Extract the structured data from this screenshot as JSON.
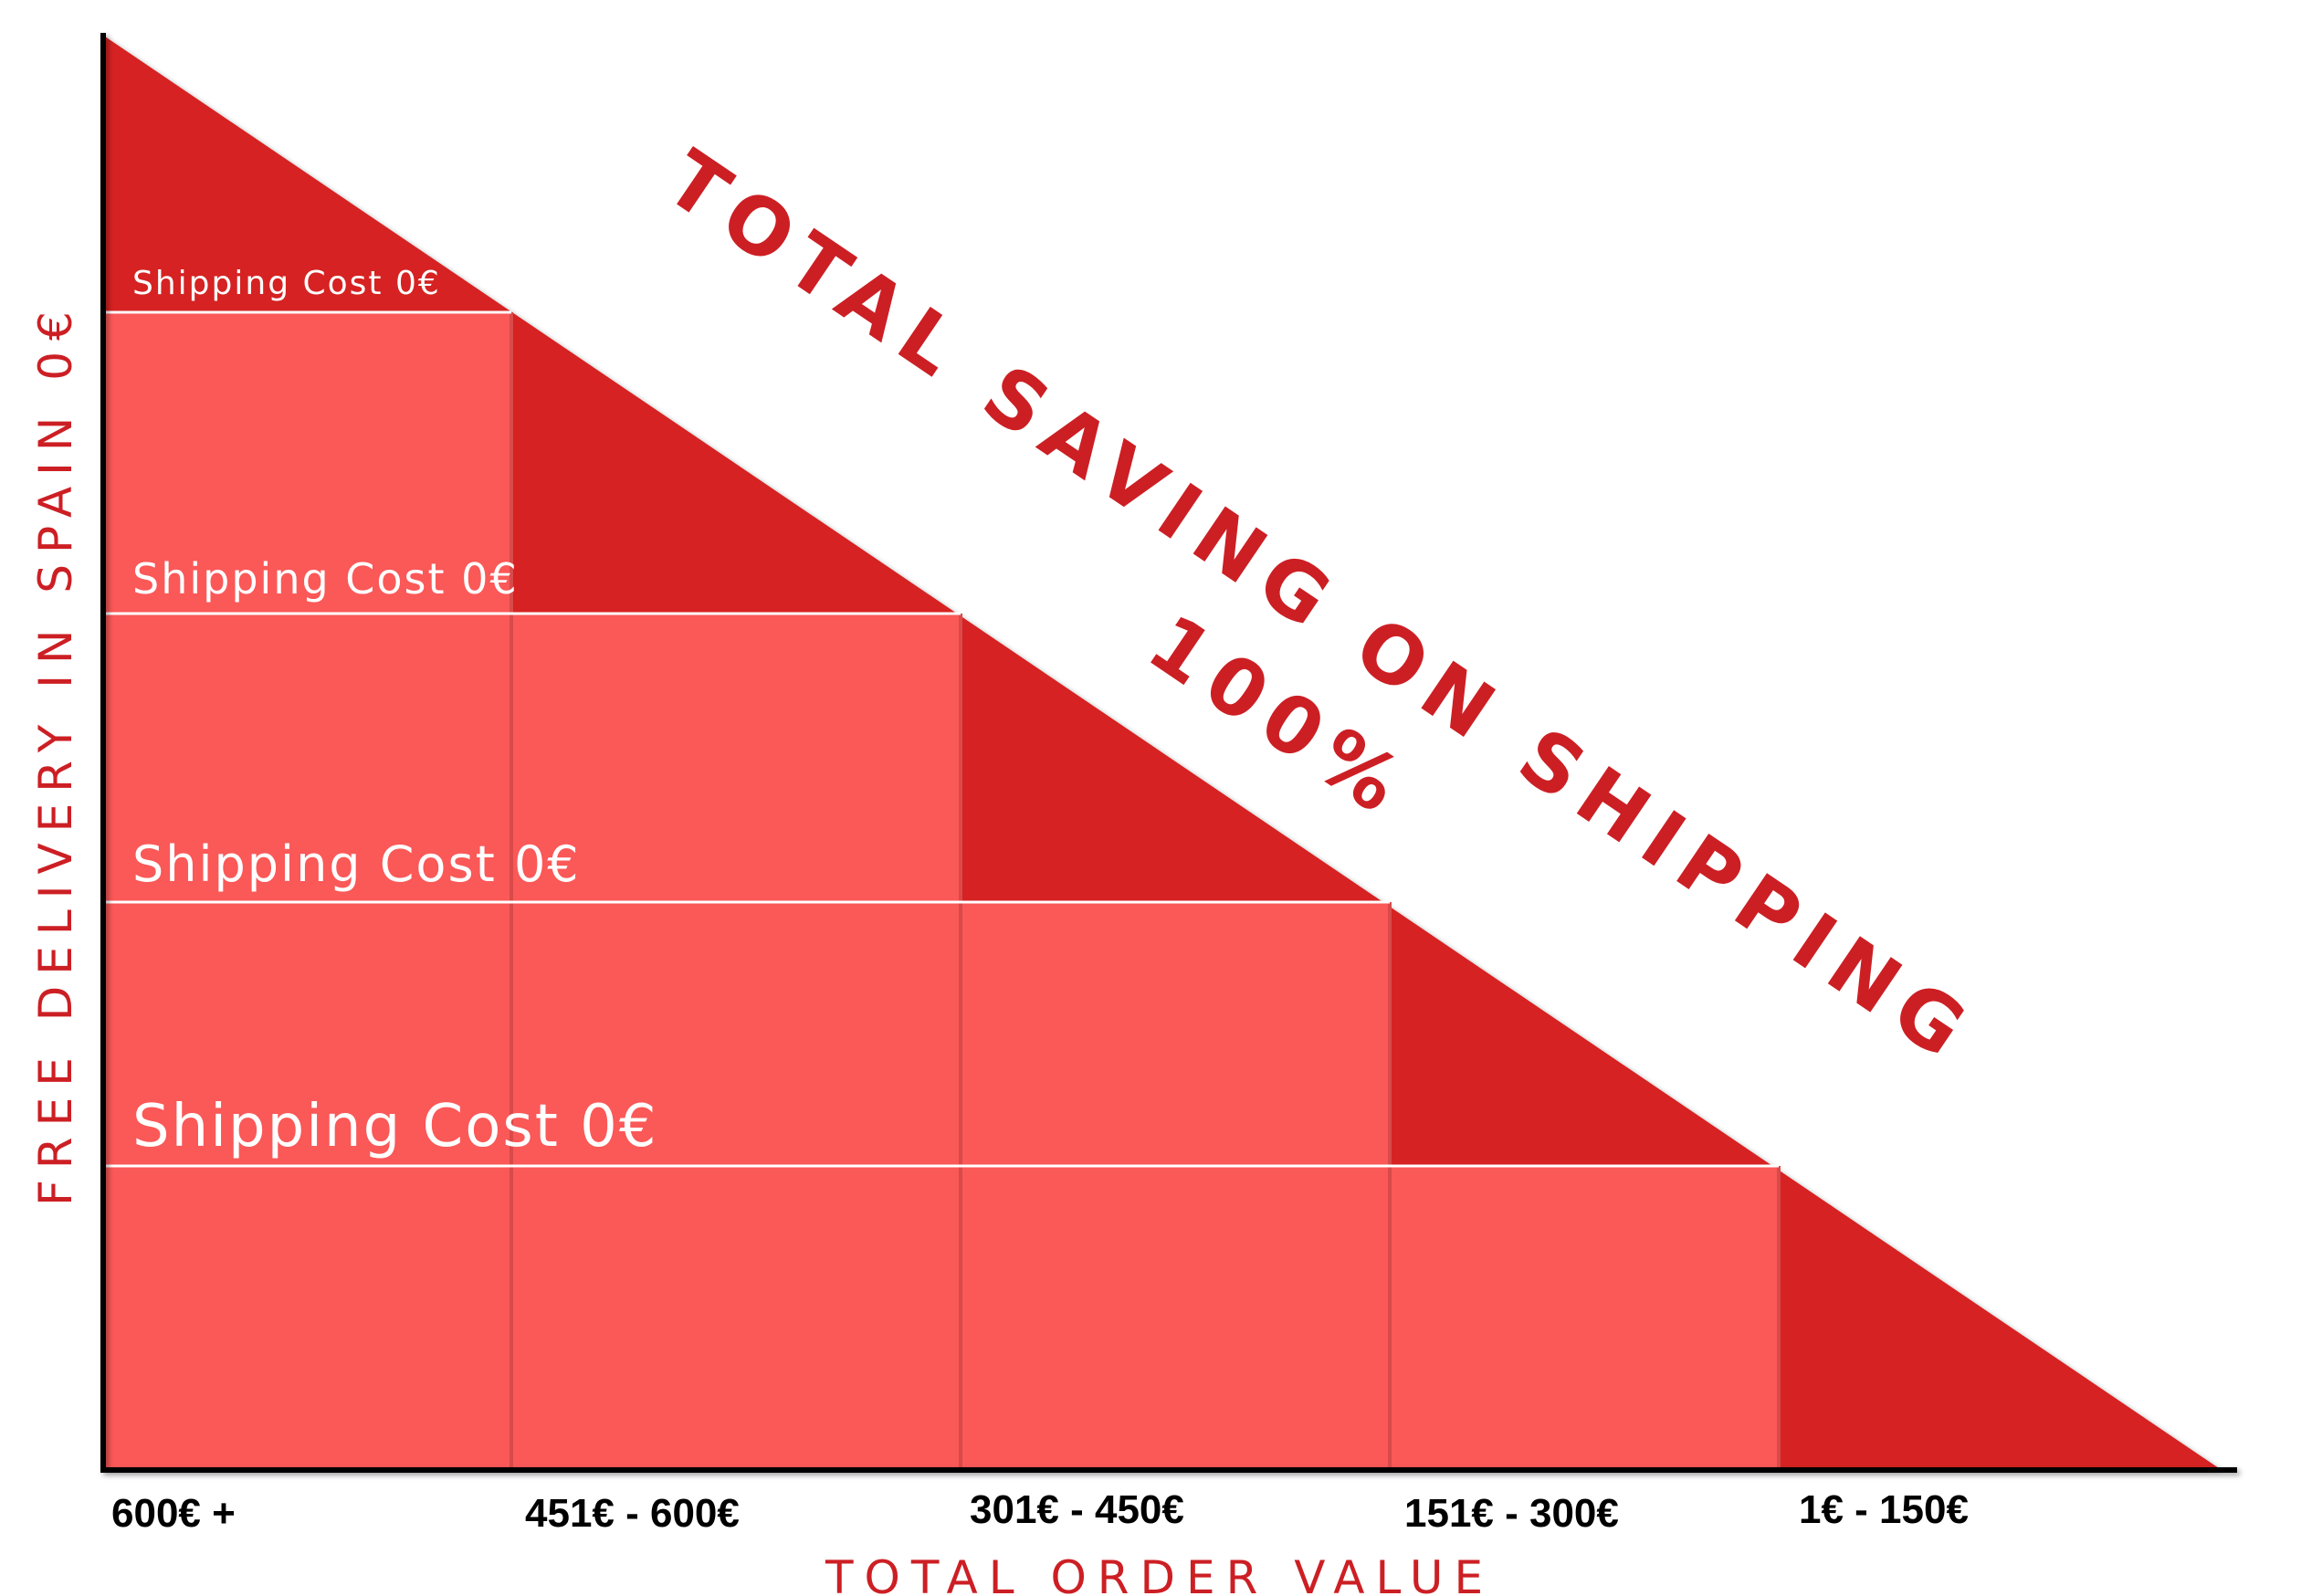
{
  "title_line1": "TOTAL SAVING ON SHIPPING",
  "title_line2": "100%",
  "y_axis_title": "FREE DELIVERY IN SPAIN 0€",
  "x_axis_title": "TOTAL ORDER VALUE",
  "tiers": [
    {
      "label": "Shipping Cost 0€"
    },
    {
      "label": "Shipping Cost 0€"
    },
    {
      "label": "Shipping Cost 0€"
    },
    {
      "label": "Shipping Cost 0€"
    }
  ],
  "ranges": [
    "600€ +",
    "451€ - 600€",
    "301€ - 450€",
    "151€ - 300€",
    "1€ - 150€"
  ],
  "colors": {
    "dark_red": "#d62024",
    "light_red": "#fb5858",
    "text_red": "#cc1f24",
    "divider": "#ffffff",
    "column_line": "#d94a4a"
  }
}
